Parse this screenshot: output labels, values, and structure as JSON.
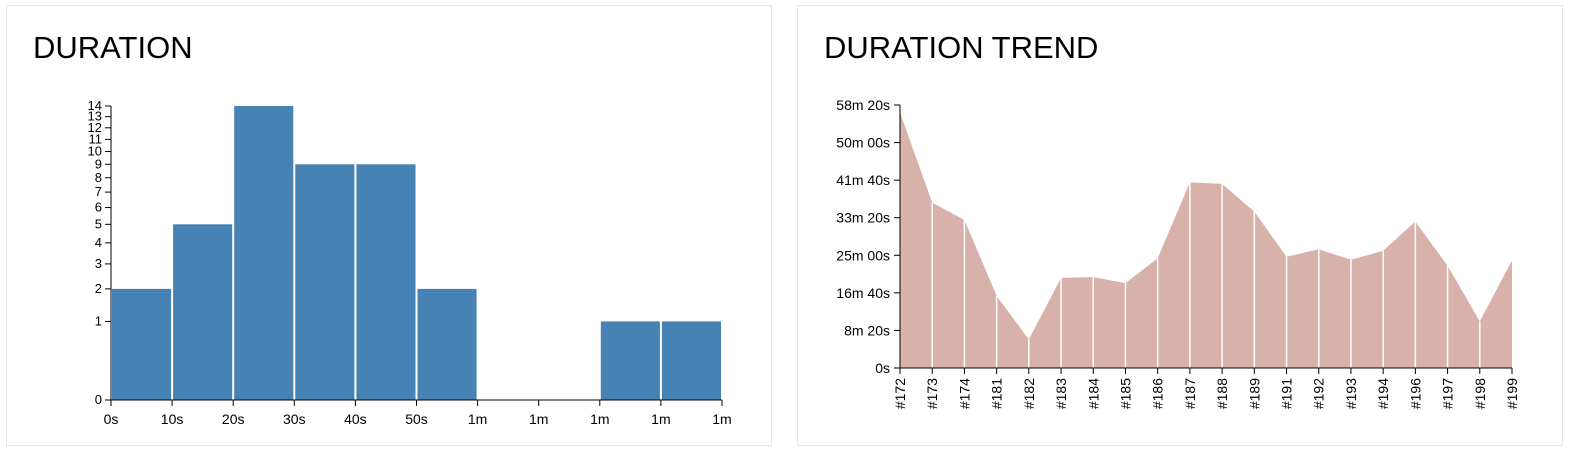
{
  "colors": {
    "bar": "#4682b4",
    "area": "#d8b1aa",
    "axis": "#000000",
    "panel_border": "#e6e6e6"
  },
  "chart_data": [
    {
      "type": "bar",
      "title": "DURATION",
      "y_scale": "sqrt",
      "ylim": [
        0,
        14
      ],
      "y_ticks": [
        0,
        1,
        2,
        3,
        4,
        5,
        6,
        7,
        8,
        9,
        10,
        11,
        12,
        13,
        14
      ],
      "x_tick_labels": [
        "0s",
        "10s",
        "20s",
        "30s",
        "40s",
        "50s",
        "1m",
        "1m",
        "1m",
        "1m",
        "1m"
      ],
      "values": [
        2,
        5,
        14,
        9,
        9,
        2,
        0,
        0,
        1,
        1
      ],
      "grid": false
    },
    {
      "type": "area",
      "title": "DURATION TREND",
      "y_tick_labels": [
        "0s",
        "8m 20s",
        "16m 40s",
        "25m 00s",
        "33m 20s",
        "41m 40s",
        "50m 00s",
        "58m 20s"
      ],
      "y_ticks_seconds": [
        0,
        500,
        1000,
        1500,
        2000,
        2500,
        3000,
        3500
      ],
      "ylim_seconds": [
        0,
        3500
      ],
      "categories": [
        "#172",
        "#173",
        "#174",
        "#181",
        "#182",
        "#183",
        "#184",
        "#185",
        "#186",
        "#187",
        "#188",
        "#189",
        "#191",
        "#192",
        "#193",
        "#194",
        "#196",
        "#197",
        "#198",
        "#199"
      ],
      "values_seconds": [
        3400,
        2200,
        1970,
        960,
        380,
        1200,
        1210,
        1130,
        1460,
        2470,
        2450,
        2080,
        1480,
        1580,
        1440,
        1560,
        1950,
        1360,
        620,
        1430
      ],
      "grid": false
    }
  ]
}
